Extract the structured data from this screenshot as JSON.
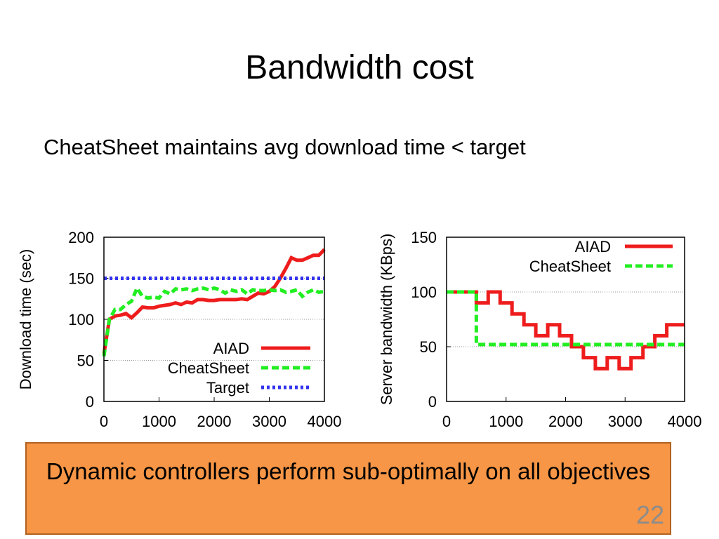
{
  "slide": {
    "title": "Bandwidth cost",
    "bullet": "CheatSheet maintains avg download time < target",
    "callout": "Dynamic controllers perform sub-optimally on all objectives",
    "page_number": "22"
  },
  "colors": {
    "AIAD": "#ee1c1c",
    "CheatSheet": "#22ee22",
    "Target": "#3333ee",
    "callout_bg": "#f79646"
  },
  "chart_data": [
    {
      "type": "line",
      "ylabel": "Download time (sec)",
      "xlabel": "",
      "xlim": [
        0,
        4000
      ],
      "ylim": [
        0,
        200
      ],
      "xticks": [
        "0",
        "1000",
        "2000",
        "3000",
        "4000"
      ],
      "yticks": [
        "0",
        "50",
        "100",
        "150",
        "200"
      ],
      "grid": "horizontal dotted",
      "legend_position": "bottom-right",
      "series": [
        {
          "name": "AIAD",
          "style": "solid",
          "x": [
            0,
            100,
            200,
            300,
            400,
            500,
            600,
            700,
            800,
            900,
            1000,
            1100,
            1200,
            1300,
            1400,
            1500,
            1600,
            1700,
            1800,
            1900,
            2000,
            2100,
            2200,
            2300,
            2400,
            2500,
            2600,
            2700,
            2800,
            2900,
            3000,
            3100,
            3200,
            3300,
            3400,
            3500,
            3600,
            3700,
            3800,
            3900,
            4000
          ],
          "y": [
            58,
            100,
            104,
            105,
            107,
            102,
            108,
            115,
            114,
            114,
            116,
            117,
            118,
            120,
            118,
            121,
            120,
            124,
            124,
            123,
            123,
            124,
            124,
            124,
            124,
            125,
            124,
            128,
            132,
            131,
            134,
            140,
            150,
            162,
            175,
            172,
            172,
            175,
            178,
            178,
            185
          ]
        },
        {
          "name": "CheatSheet",
          "style": "dashed",
          "x": [
            0,
            100,
            200,
            300,
            400,
            500,
            600,
            700,
            800,
            900,
            1000,
            1100,
            1200,
            1300,
            1400,
            1500,
            1600,
            1700,
            1800,
            1900,
            2000,
            2100,
            2200,
            2300,
            2400,
            2500,
            2600,
            2700,
            2800,
            2900,
            3000,
            3100,
            3200,
            3300,
            3400,
            3500,
            3600,
            3700,
            3800,
            3900,
            4000
          ],
          "y": [
            55,
            100,
            112,
            112,
            118,
            122,
            138,
            128,
            126,
            127,
            126,
            134,
            131,
            137,
            136,
            137,
            135,
            137,
            138,
            136,
            138,
            136,
            132,
            136,
            134,
            136,
            131,
            136,
            135,
            135,
            136,
            135,
            136,
            133,
            134,
            136,
            128,
            133,
            136,
            133,
            134
          ]
        },
        {
          "name": "Target",
          "style": "dotted",
          "x": [
            0,
            4000
          ],
          "y": [
            150,
            150
          ]
        }
      ]
    },
    {
      "type": "line",
      "ylabel": "Server bandwidth (KBps)",
      "xlabel": "",
      "xlim": [
        0,
        4000
      ],
      "ylim": [
        0,
        150
      ],
      "xticks": [
        "0",
        "1000",
        "2000",
        "3000",
        "4000"
      ],
      "yticks": [
        "0",
        "50",
        "100",
        "150"
      ],
      "grid": "horizontal dotted",
      "legend_position": "top-right",
      "series": [
        {
          "name": "AIAD",
          "style": "step",
          "x": [
            0,
            500,
            700,
            900,
            1100,
            1300,
            1500,
            1700,
            1900,
            2100,
            2300,
            2500,
            2700,
            2900,
            3100,
            3300,
            3500,
            3700,
            4000
          ],
          "y": [
            100,
            90,
            100,
            90,
            80,
            70,
            60,
            70,
            60,
            50,
            40,
            30,
            40,
            30,
            40,
            50,
            60,
            70,
            70
          ]
        },
        {
          "name": "CheatSheet",
          "style": "step-dashed",
          "x": [
            0,
            500,
            4000
          ],
          "y": [
            100,
            52,
            52
          ]
        }
      ]
    }
  ]
}
